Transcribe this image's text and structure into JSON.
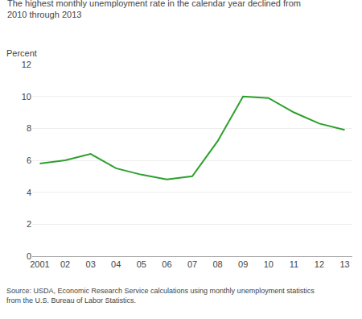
{
  "chart_data": {
    "type": "line",
    "title": "The highest monthly unemployment rate in the calendar year declined from\n2010 through 2013",
    "ylabel": "Percent",
    "annotations": [
      "Source: USDA, Economic Research Service calculations using monthly unemployment statistics\nfrom the U.S. Bureau of Labor Statistics."
    ],
    "categories": [
      "2001",
      "02",
      "03",
      "04",
      "05",
      "06",
      "07",
      "08",
      "09",
      "10",
      "11",
      "12",
      "13"
    ],
    "values": [
      5.8,
      6.0,
      6.4,
      5.5,
      5.1,
      4.8,
      5.0,
      7.2,
      10.0,
      9.9,
      9.0,
      8.3,
      7.9
    ],
    "color": "#2ca02c",
    "ylim": [
      0,
      12
    ],
    "yticks": [
      0,
      2,
      4,
      6,
      8,
      10,
      12
    ],
    "grid": true
  }
}
